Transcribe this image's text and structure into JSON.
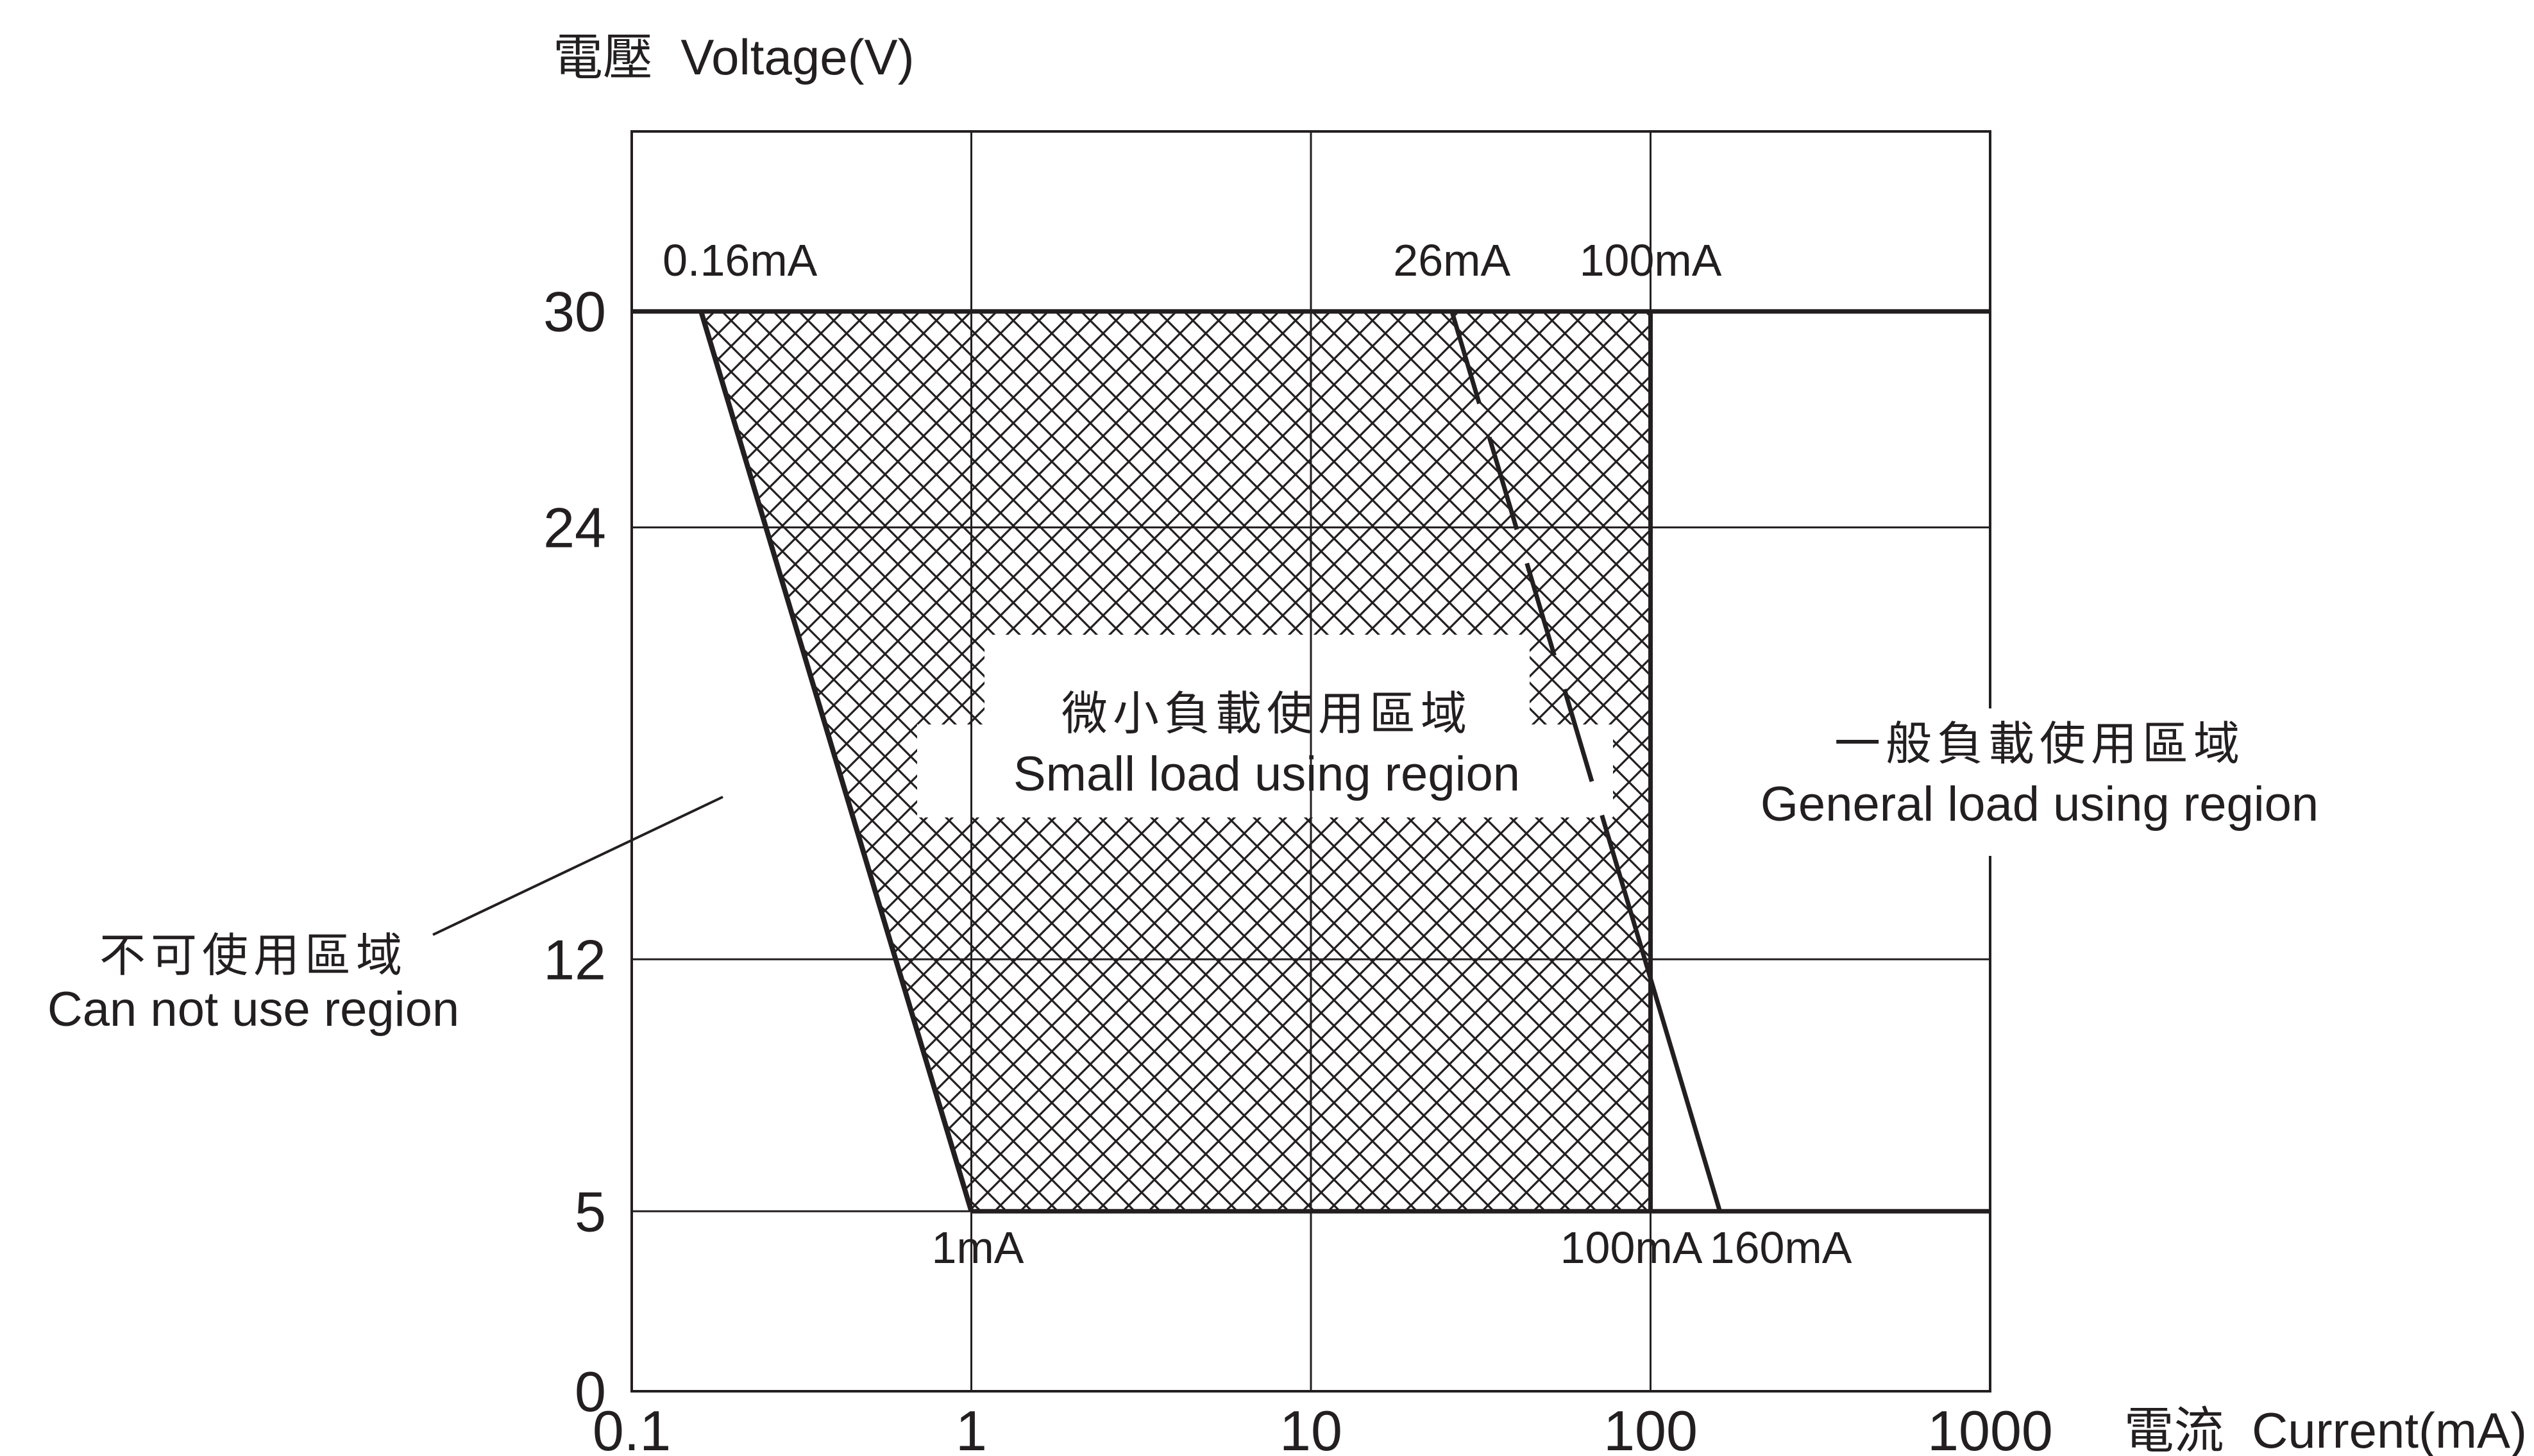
{
  "chart_data": {
    "type": "area",
    "title": "",
    "ylabel": "電壓  Voltage(V)",
    "xlabel": "電流  Current(mA)",
    "x_scale": "log",
    "xlim": [
      0.1,
      1000
    ],
    "ylim": [
      0,
      35
    ],
    "grid": true,
    "x_ticks": [
      {
        "value": 0.1,
        "label": "0.1"
      },
      {
        "value": 1,
        "label": "1"
      },
      {
        "value": 10,
        "label": "10"
      },
      {
        "value": 100,
        "label": "100"
      },
      {
        "value": 1000,
        "label": "1000"
      }
    ],
    "y_ticks": [
      {
        "value": 0,
        "label": "0"
      },
      {
        "value": 5,
        "label": "5"
      },
      {
        "value": 12,
        "label": "12"
      },
      {
        "value": 24,
        "label": "24"
      },
      {
        "value": 30,
        "label": "30"
      }
    ],
    "boundaries": {
      "min_current_line": [
        {
          "x": 0.16,
          "y": 30
        },
        {
          "x": 1,
          "y": 5
        }
      ],
      "small_load_max_line": [
        {
          "x": 100,
          "y": 30
        },
        {
          "x": 100,
          "y": 5
        }
      ],
      "general_load_max_line": [
        {
          "x": 26,
          "y": 30
        },
        {
          "x": 160,
          "y": 5
        }
      ],
      "voltage_max_line": [
        {
          "x": 0.1,
          "y": 30
        },
        {
          "x": 1000,
          "y": 30
        }
      ],
      "voltage_min_line": [
        {
          "x": 1,
          "y": 5
        },
        {
          "x": 1000,
          "y": 5
        }
      ]
    },
    "small_load_region": [
      {
        "x": 0.16,
        "y": 30
      },
      {
        "x": 100,
        "y": 30
      },
      {
        "x": 100,
        "y": 5
      },
      {
        "x": 1,
        "y": 5
      }
    ],
    "annotations": {
      "top_left": {
        "text": "0.16mA",
        "x": 0.16,
        "y": 30
      },
      "top_mid": {
        "text": "26mA",
        "x": 26,
        "y": 30
      },
      "top_right": {
        "text": "100mA",
        "x": 100,
        "y": 30
      },
      "bottom_left": {
        "text": "1mA",
        "x": 1,
        "y": 5
      },
      "bottom_mid": {
        "text": "100mA",
        "x": 100,
        "y": 5
      },
      "bottom_right": {
        "text": "160mA",
        "x": 160,
        "y": 5
      }
    },
    "regions": {
      "small_load": {
        "label_zh": "微小負載使用區域",
        "label_en": "Small load using region"
      },
      "general_load": {
        "label_zh": "一般負載使用區域",
        "label_en": "General load using region"
      },
      "cannot_use": {
        "label_zh": "不可使用區域",
        "label_en": "Can not use region"
      }
    },
    "colors": {
      "line": "#231f20",
      "grid": "#231f20",
      "background": "#ffffff"
    }
  }
}
